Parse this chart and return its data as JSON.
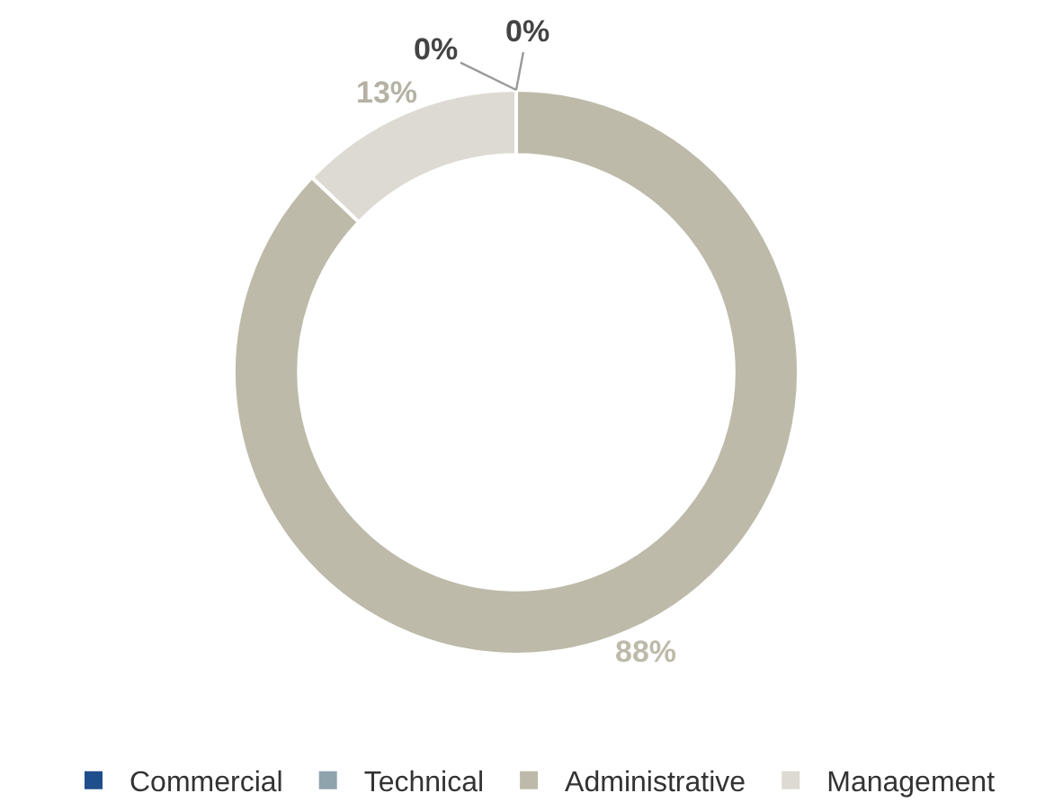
{
  "chart_data": {
    "type": "donut",
    "categories": [
      "Commercial",
      "Technical",
      "Administrative",
      "Management"
    ],
    "values": [
      0,
      0,
      88,
      13
    ],
    "colors": [
      "#1f4e8c",
      "#8fa3ad",
      "#bdbaa9",
      "#dcdad2"
    ],
    "value_labels": [
      "0%",
      "0%",
      "88%",
      "13%"
    ],
    "legend": "bottom"
  }
}
